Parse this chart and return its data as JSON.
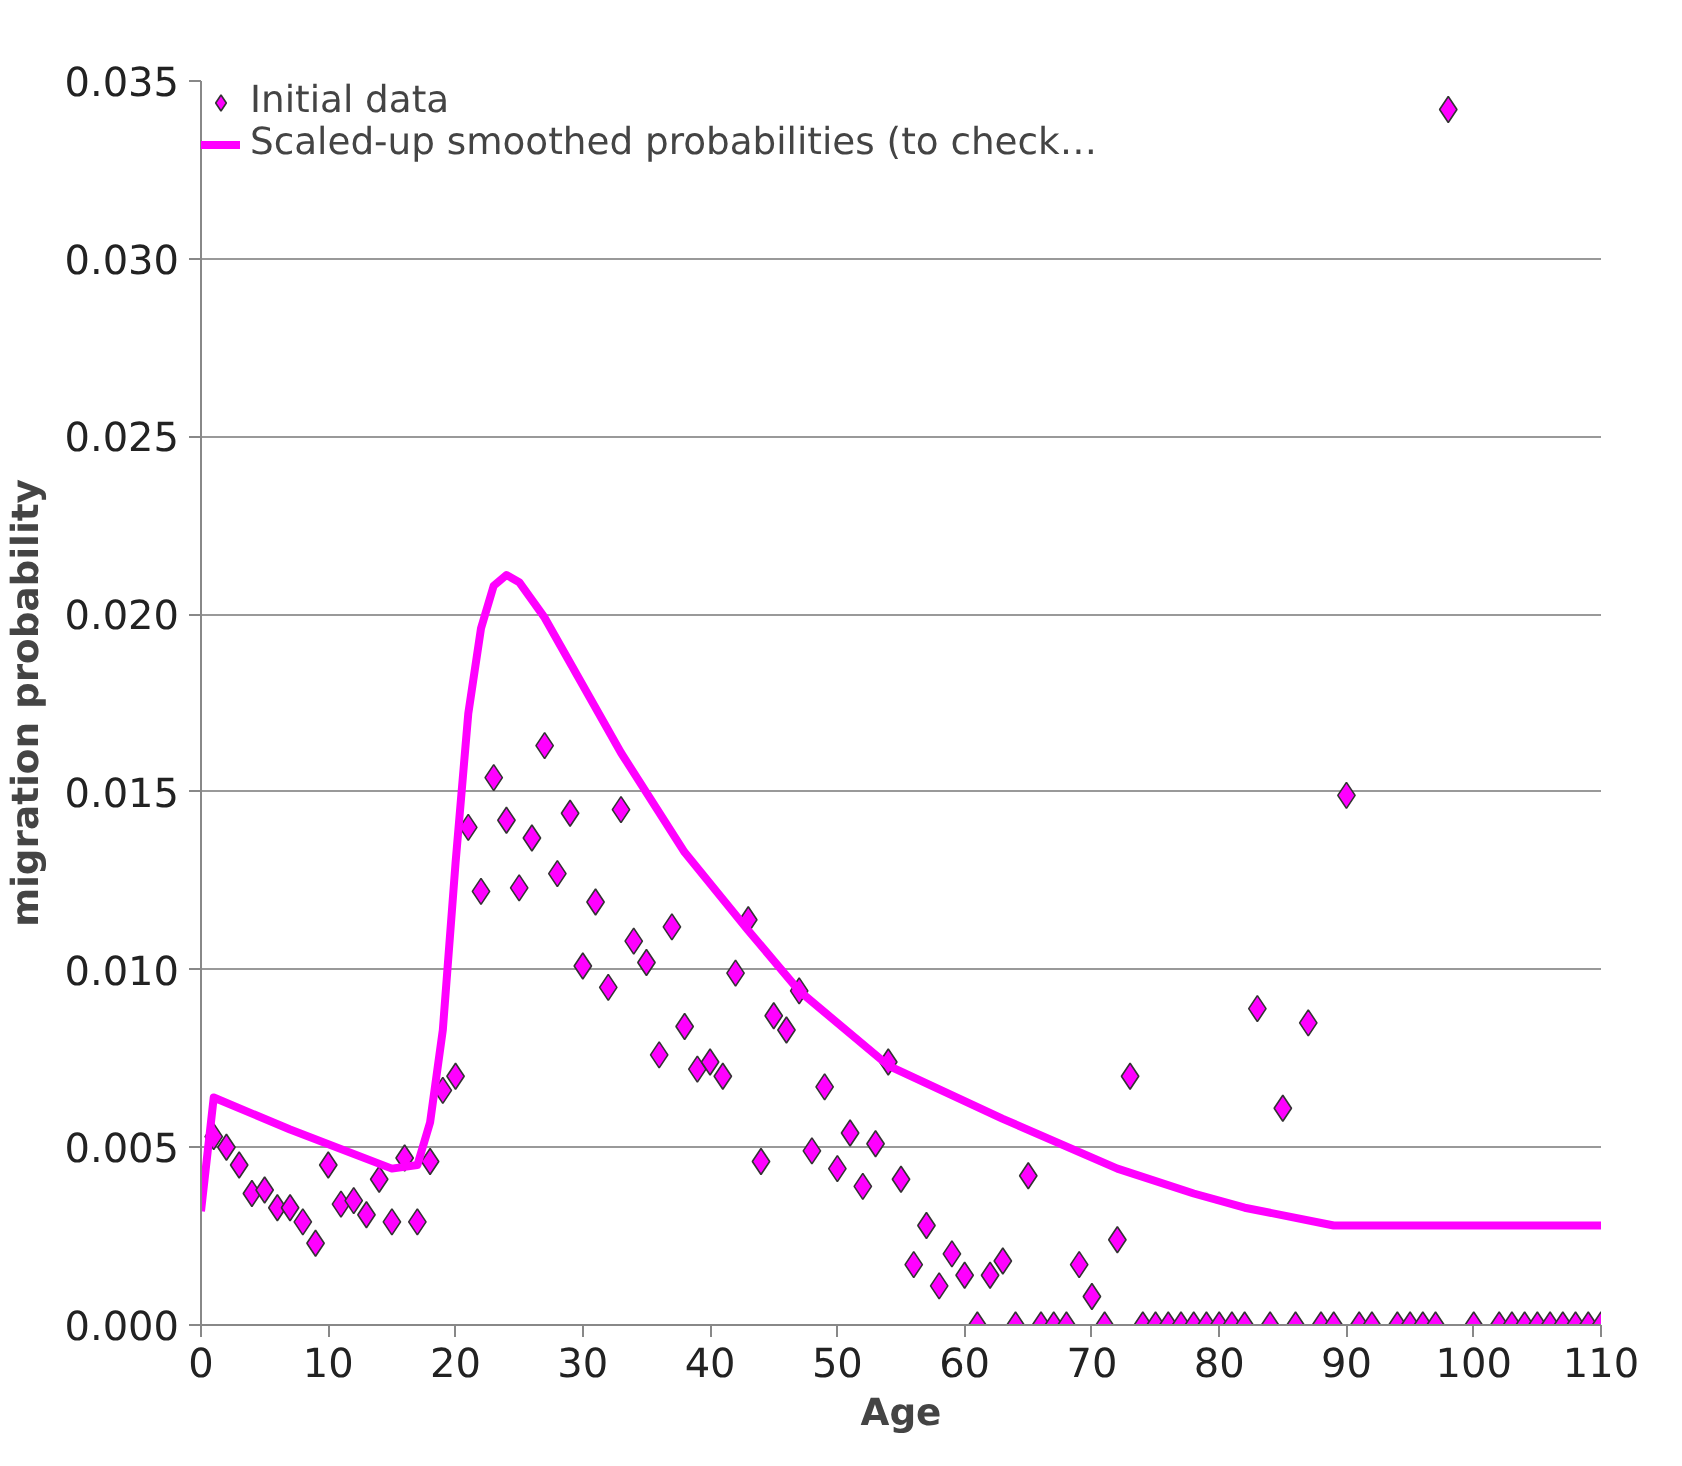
{
  "chart_data": {
    "type": "scatter",
    "xlabel": "Age",
    "ylabel": "migration probability",
    "xlim": [
      0,
      110
    ],
    "xticks": [
      0,
      10,
      20,
      30,
      40,
      50,
      60,
      70,
      80,
      90,
      100,
      110
    ],
    "ylim": [
      0,
      0.035
    ],
    "yticks": [
      {
        "value": 0,
        "label": "0.000"
      },
      {
        "value": 0.005,
        "label": "0.005"
      },
      {
        "value": 0.01,
        "label": "0.010"
      },
      {
        "value": 0.015,
        "label": "0.015"
      },
      {
        "value": 0.02,
        "label": "0.020"
      },
      {
        "value": 0.025,
        "label": "0.025"
      },
      {
        "value": 0.03,
        "label": "0.030"
      },
      {
        "value": 0.035,
        "label": "0.035"
      }
    ],
    "grid": "y",
    "legend": "top left",
    "series": [
      {
        "name": "Initial data",
        "marker": "diamond",
        "color": "#ff00ff",
        "x": [
          1,
          2,
          3,
          4,
          5,
          6,
          7,
          8,
          9,
          10,
          11,
          12,
          13,
          14,
          15,
          16,
          17,
          18,
          19,
          20,
          21,
          22,
          23,
          24,
          25,
          26,
          27,
          28,
          29,
          30,
          31,
          32,
          33,
          34,
          35,
          36,
          37,
          38,
          39,
          40,
          41,
          42,
          43,
          44,
          45,
          46,
          47,
          48,
          49,
          50,
          51,
          52,
          53,
          54,
          55,
          56,
          57,
          58,
          59,
          60,
          61,
          62,
          63,
          64,
          65,
          66,
          67,
          68,
          69,
          70,
          71,
          72,
          73,
          74,
          75,
          76,
          77,
          78,
          79,
          80,
          81,
          82,
          83,
          84,
          85,
          86,
          87,
          88,
          89,
          90,
          91,
          92,
          94,
          95,
          96,
          97,
          98,
          100,
          102,
          103,
          104,
          105,
          106,
          107,
          108,
          109,
          110
        ],
        "values": [
          0.0053,
          0.005,
          0.0045,
          0.0037,
          0.0038,
          0.0033,
          0.0033,
          0.0029,
          0.0023,
          0.0045,
          0.0034,
          0.0035,
          0.0031,
          0.0041,
          0.0029,
          0.0047,
          0.0029,
          0.0046,
          0.0066,
          0.007,
          0.014,
          0.0122,
          0.0154,
          0.0142,
          0.0123,
          0.0137,
          0.0163,
          0.0127,
          0.0144,
          0.0101,
          0.0119,
          0.0095,
          0.0145,
          0.0108,
          0.0102,
          0.0076,
          0.0112,
          0.0084,
          0.0072,
          0.0074,
          0.007,
          0.0099,
          0.0114,
          0.0046,
          0.0087,
          0.0083,
          0.0094,
          0.0049,
          0.0067,
          0.0044,
          0.0054,
          0.0039,
          0.0051,
          0.0074,
          0.0041,
          0.0017,
          0.0028,
          0.0011,
          0.002,
          0.0014,
          0,
          0.0014,
          0.0018,
          0,
          0.0042,
          0,
          0,
          0,
          0.0017,
          0.0008,
          0,
          0.0024,
          0.007,
          0,
          0,
          0,
          0,
          0,
          0,
          0,
          0,
          0,
          0.0089,
          0,
          0.0061,
          0,
          0.0085,
          0,
          0,
          0.0149,
          0,
          0,
          0,
          0,
          0,
          0,
          0.0342,
          0,
          0,
          0,
          0,
          0,
          0,
          0,
          0,
          0,
          0
        ]
      },
      {
        "name": "Scaled-up smoothed probabilities (to check…",
        "type": "line",
        "line_style": "solid",
        "color": "#ff00ff",
        "x": [
          0,
          1,
          7,
          15,
          17,
          18,
          19,
          20,
          21,
          22,
          23,
          24,
          25,
          27,
          30,
          33,
          38,
          43,
          47,
          54,
          63,
          72,
          78,
          82,
          89,
          110
        ],
        "values": [
          0.0032,
          0.0064,
          0.0055,
          0.0044,
          0.0045,
          0.0057,
          0.0083,
          0.013,
          0.0172,
          0.0196,
          0.0208,
          0.0211,
          0.0209,
          0.0199,
          0.018,
          0.0161,
          0.0133,
          0.0111,
          0.0094,
          0.0073,
          0.0058,
          0.0044,
          0.0037,
          0.0033,
          0.0028,
          0.0028
        ]
      }
    ]
  }
}
